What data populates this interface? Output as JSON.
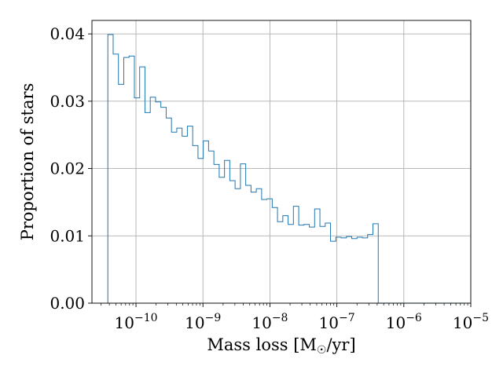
{
  "chart_data": {
    "type": "histogram",
    "xlabel_main": "Mass loss [M",
    "xlabel_sub": "☉",
    "xlabel_tail": "/yr]",
    "ylabel": "Proportion of stars",
    "x_scale": "log",
    "xlim": [
      2.2e-11,
      1e-05
    ],
    "ylim": [
      0,
      0.042
    ],
    "grid": true,
    "series_color": "#1f77b4",
    "x_ticks": [
      {
        "value": 1e-10,
        "base": "10",
        "exp": "−10"
      },
      {
        "value": 1e-09,
        "base": "10",
        "exp": "−9"
      },
      {
        "value": 1e-08,
        "base": "10",
        "exp": "−8"
      },
      {
        "value": 1e-07,
        "base": "10",
        "exp": "−7"
      },
      {
        "value": 1e-06,
        "base": "10",
        "exp": "−6"
      },
      {
        "value": 1e-05,
        "base": "10",
        "exp": "−5"
      }
    ],
    "y_ticks": [
      {
        "value": 0.0,
        "label": "0.00"
      },
      {
        "value": 0.01,
        "label": "0.01"
      },
      {
        "value": 0.02,
        "label": "0.02"
      },
      {
        "value": 0.03,
        "label": "0.03"
      },
      {
        "value": 0.04,
        "label": "0.04"
      }
    ],
    "bin_edges": [
      3.8e-11,
      4.56e-11,
      5.47e-11,
      6.57e-11,
      7.88e-11,
      9.46e-11,
      1.135e-10,
      1.362e-10,
      1.634e-10,
      1.961e-10,
      2.353e-10,
      2.824e-10,
      3.389e-10,
      4.067e-10,
      4.88e-10,
      5.856e-10,
      7.027e-10,
      8.433e-10,
      1.012e-09,
      1.214e-09,
      1.457e-09,
      1.749e-09,
      2.098e-09,
      2.518e-09,
      3.021e-09,
      3.626e-09,
      4.351e-09,
      5.221e-09,
      6.265e-09,
      7.518e-09,
      9.022e-09,
      1.083e-08,
      1.299e-08,
      1.559e-08,
      1.871e-08,
      2.245e-08,
      2.694e-08,
      3.232e-08,
      3.879e-08,
      4.655e-08,
      5.585e-08,
      6.703e-08,
      8.043e-08,
      9.652e-08,
      1.158e-07,
      1.39e-07,
      1.668e-07,
      2.001e-07,
      2.402e-07,
      2.882e-07,
      3.458e-07,
      4.15e-07,
      4.98e-07,
      5.976e-07,
      7.171e-07,
      8.606e-07,
      1.033e-06,
      1.239e-06,
      1.487e-06,
      1.784e-06,
      2.141e-06,
      2.569e-06,
      3.083e-06,
      3.7e-06,
      4.44e-06,
      5.328e-06,
      6.393e-06,
      7.672e-06
    ],
    "values": [
      0.0399,
      0.037,
      0.0325,
      0.0365,
      0.0367,
      0.0305,
      0.0351,
      0.0283,
      0.0306,
      0.0299,
      0.0291,
      0.0275,
      0.0254,
      0.026,
      0.0248,
      0.0263,
      0.0234,
      0.0215,
      0.0241,
      0.0226,
      0.0206,
      0.0187,
      0.0212,
      0.0182,
      0.017,
      0.0207,
      0.0175,
      0.0165,
      0.017,
      0.0154,
      0.0155,
      0.0142,
      0.0121,
      0.013,
      0.0117,
      0.0144,
      0.0116,
      0.0117,
      0.0113,
      0.014,
      0.0114,
      0.0119,
      0.0092,
      0.0098,
      0.0097,
      0.0099,
      0.0096,
      0.0098,
      0.0097,
      0.0102,
      0.0118,
      0.0,
      0.0,
      0.0,
      0.0,
      0.0,
      0.0,
      0.0,
      0.0,
      0.0,
      0.0,
      0.0,
      0.0,
      0.0,
      0.0,
      0.0,
      0.0
    ]
  }
}
